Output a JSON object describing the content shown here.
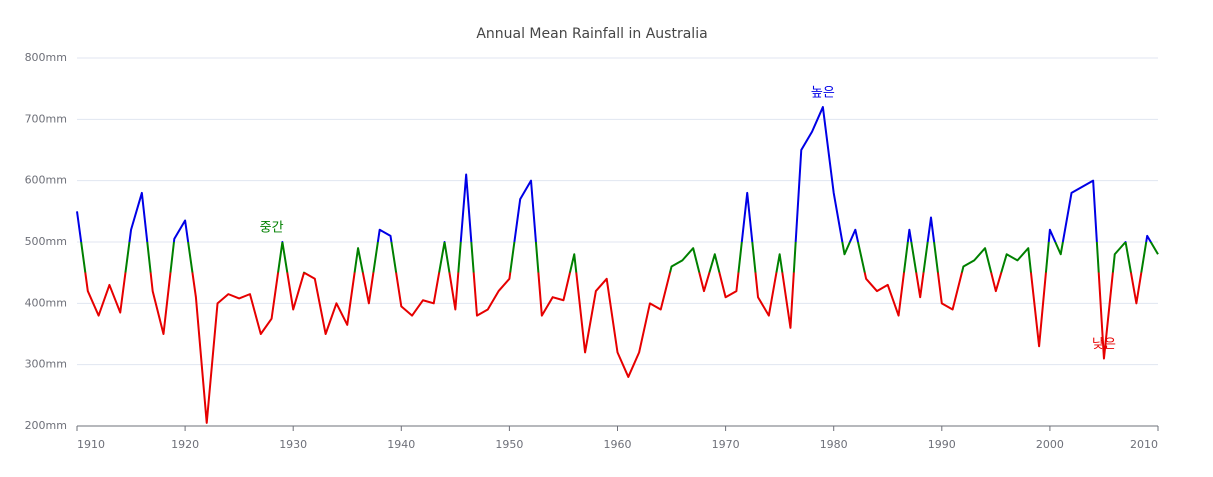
{
  "chart_data": {
    "type": "line",
    "title": "Annual Mean Rainfall in Australia",
    "x": [
      1910,
      1911,
      1912,
      1913,
      1914,
      1915,
      1916,
      1917,
      1918,
      1919,
      1920,
      1921,
      1922,
      1923,
      1924,
      1925,
      1926,
      1927,
      1928,
      1929,
      1930,
      1931,
      1932,
      1933,
      1934,
      1935,
      1936,
      1937,
      1938,
      1939,
      1940,
      1941,
      1942,
      1943,
      1944,
      1945,
      1946,
      1947,
      1948,
      1949,
      1950,
      1951,
      1952,
      1953,
      1954,
      1955,
      1956,
      1957,
      1958,
      1959,
      1960,
      1961,
      1962,
      1963,
      1964,
      1965,
      1966,
      1967,
      1968,
      1969,
      1970,
      1971,
      1972,
      1973,
      1974,
      1975,
      1976,
      1977,
      1978,
      1979,
      1980,
      1981,
      1982,
      1983,
      1984,
      1985,
      1986,
      1987,
      1988,
      1989,
      1990,
      1991,
      1992,
      1993,
      1994,
      1995,
      1996,
      1997,
      1998,
      1999,
      2000,
      2001,
      2002,
      2003,
      2004,
      2005,
      2006,
      2007,
      2008,
      2009,
      2010
    ],
    "series": [
      {
        "values": [
          550,
          420,
          380,
          430,
          385,
          520,
          580,
          420,
          350,
          505,
          535,
          410,
          205,
          400,
          415,
          408,
          415,
          350,
          375,
          500,
          390,
          450,
          440,
          350,
          400,
          365,
          490,
          400,
          520,
          510,
          395,
          380,
          405,
          400,
          500,
          390,
          610,
          380,
          390,
          420,
          440,
          570,
          600,
          380,
          410,
          405,
          480,
          320,
          420,
          440,
          320,
          280,
          320,
          400,
          390,
          460,
          470,
          490,
          420,
          480,
          410,
          420,
          580,
          410,
          380,
          480,
          360,
          650,
          680,
          720,
          580,
          480,
          520,
          440,
          420,
          430,
          380,
          520,
          410,
          540,
          400,
          390,
          460,
          470,
          490,
          420,
          480,
          470,
          490,
          330,
          520,
          480,
          580,
          590,
          600,
          310,
          480,
          500,
          400,
          510,
          480
        ]
      }
    ],
    "color_pieces": [
      {
        "max": 450,
        "color": "#e60000"
      },
      {
        "min": 450,
        "max": 500,
        "color": "#008000"
      },
      {
        "min": 500,
        "color": "#0000e6"
      }
    ],
    "annotations": [
      {
        "text": "높은",
        "x": 1979,
        "y": 720,
        "color": "#0000e6"
      },
      {
        "text": "중간",
        "x": 1928,
        "y": 500,
        "color": "#008000"
      },
      {
        "text": "낮은",
        "x": 2005,
        "y": 310,
        "color": "#e60000"
      }
    ],
    "xlim": [
      1910,
      2010
    ],
    "xticks": [
      1910,
      1920,
      1930,
      1940,
      1950,
      1960,
      1970,
      1980,
      1990,
      2000,
      2010
    ],
    "ylim": [
      200,
      800
    ],
    "yticks": [
      {
        "value": 200,
        "label": "200mm"
      },
      {
        "value": 300,
        "label": "300mm"
      },
      {
        "value": 400,
        "label": "400mm"
      },
      {
        "value": 500,
        "label": "500mm"
      },
      {
        "value": 600,
        "label": "600mm"
      },
      {
        "value": 700,
        "label": "700mm"
      },
      {
        "value": 800,
        "label": "800mm"
      }
    ],
    "grid": true
  }
}
